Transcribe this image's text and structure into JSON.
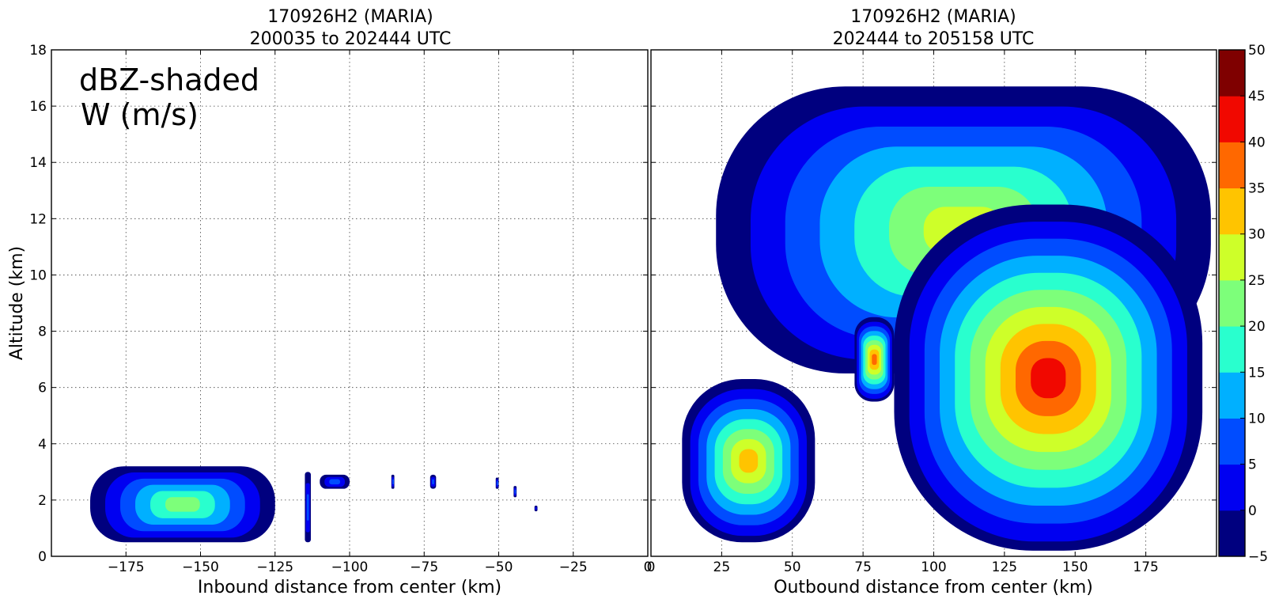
{
  "colorbar": {
    "levels": [
      -5,
      0,
      5,
      10,
      15,
      20,
      25,
      30,
      35,
      40,
      45,
      50
    ],
    "tick_labels": [
      "-5",
      "0",
      "5",
      "10",
      "15",
      "20",
      "25",
      "30",
      "35",
      "40",
      "45",
      "50"
    ],
    "colors": [
      "#00007f",
      "#0000f1",
      "#004cff",
      "#00b0ff",
      "#29ffce",
      "#7dff7a",
      "#ceff29",
      "#ffc400",
      "#ff6800",
      "#f10800",
      "#7f0000"
    ]
  },
  "annotation": {
    "line1": "dBZ-shaded",
    "line2": "W (m/s)"
  },
  "y_axis": {
    "label": "Altitude (km)",
    "range": [
      0,
      18
    ],
    "ticks": [
      0,
      2,
      4,
      6,
      8,
      10,
      12,
      14,
      16,
      18
    ],
    "tick_labels": [
      "0",
      "2",
      "4",
      "6",
      "8",
      "10",
      "12",
      "14",
      "16",
      "18"
    ]
  },
  "chart_data": [
    {
      "type": "heatmap",
      "title_line1": "170926H2 (MARIA)",
      "title_line2": "200035 to 202444 UTC",
      "xlabel": "Inbound distance from center (km)",
      "ylabel": "Altitude (km)",
      "xlim": [
        -200,
        0
      ],
      "ylim": [
        0,
        18
      ],
      "xticks": [
        -175,
        -150,
        -125,
        -100,
        -75,
        -50,
        -25,
        0
      ],
      "xtick_labels": [
        "−175",
        "−150",
        "−125",
        "−100",
        "−75",
        "−50",
        "−25",
        "0"
      ],
      "grid": true,
      "shaded_quantity": "dBZ",
      "echoes": [
        {
          "x0": -187,
          "x1": -125,
          "top": 3.2,
          "base": 0.5,
          "dbz_max": 20
        },
        {
          "x0": -115,
          "x1": -113,
          "top": 3.0,
          "base": 0.5,
          "dbz_max": 5
        },
        {
          "x0": -110,
          "x1": -100,
          "top": 2.9,
          "base": 2.4,
          "dbz_max": 5
        },
        {
          "x0": -86,
          "x1": -85,
          "top": 2.9,
          "base": 2.4,
          "dbz_max": 5
        },
        {
          "x0": -73,
          "x1": -71,
          "top": 2.9,
          "base": 2.4,
          "dbz_max": 5
        },
        {
          "x0": -51,
          "x1": -50,
          "top": 2.8,
          "base": 2.4,
          "dbz_max": 5
        },
        {
          "x0": -45,
          "x1": -44,
          "top": 2.5,
          "base": 2.1,
          "dbz_max": 5
        },
        {
          "x0": -38,
          "x1": -37,
          "top": 1.8,
          "base": 1.6,
          "dbz_max": 0
        }
      ]
    },
    {
      "type": "heatmap",
      "title_line1": "170926H2 (MARIA)",
      "title_line2": "202444 to 205158 UTC",
      "xlabel": "Outbound distance from center (km)",
      "ylabel": "",
      "xlim": [
        0,
        200
      ],
      "ylim": [
        0,
        18
      ],
      "xticks": [
        0,
        25,
        50,
        75,
        100,
        125,
        150,
        175
      ],
      "xtick_labels": [
        "0",
        "25",
        "50",
        "75",
        "100",
        "125",
        "150",
        "175"
      ],
      "grid": true,
      "shaded_quantity": "dBZ",
      "echoes": [
        {
          "x0": 11,
          "x1": 58,
          "top": 6.3,
          "base": 0.5,
          "dbz_max": 30
        },
        {
          "x0": 23,
          "x1": 198,
          "top": 16.7,
          "base": 6.5,
          "dbz_max": 25
        },
        {
          "x0": 72,
          "x1": 86,
          "top": 8.5,
          "base": 5.5,
          "dbz_max": 35
        },
        {
          "x0": 86,
          "x1": 195,
          "top": 12.5,
          "base": 0.2,
          "dbz_max": 40
        }
      ]
    }
  ]
}
